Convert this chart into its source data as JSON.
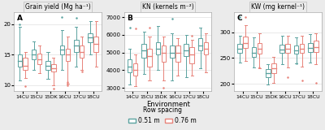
{
  "panels": [
    {
      "label": "A",
      "title": "Grain yield (Mg ha⁻¹)",
      "ylim": [
        9,
        22
      ],
      "yticks": [
        10,
        15,
        20
      ],
      "environments": [
        "14CU",
        "15CU",
        "15DK",
        "16CU",
        "17CU",
        "18CU"
      ],
      "series": {
        "0.51m": {
          "color": "#5ba3a0",
          "boxes": [
            {
              "q1": 13.0,
              "median": 14.0,
              "q3": 15.0,
              "whislo": 10.8,
              "whishi": 19.5,
              "fliers": [
                19.9
              ]
            },
            {
              "q1": 14.2,
              "median": 15.0,
              "q3": 15.8,
              "whislo": 12.5,
              "whishi": 17.2,
              "fliers": []
            },
            {
              "q1": 12.5,
              "median": 13.2,
              "q3": 14.0,
              "whislo": 11.0,
              "whishi": 15.5,
              "fliers": []
            },
            {
              "q1": 15.0,
              "median": 15.8,
              "q3": 16.5,
              "whislo": 12.5,
              "whishi": 19.0,
              "fliers": [
                21.2
              ]
            },
            {
              "q1": 15.5,
              "median": 16.5,
              "q3": 17.5,
              "whislo": 13.0,
              "whishi": 19.5,
              "fliers": [
                21.0
              ]
            },
            {
              "q1": 17.0,
              "median": 17.8,
              "q3": 18.5,
              "whislo": 15.0,
              "whishi": 20.5,
              "fliers": []
            }
          ]
        },
        "0.76m": {
          "color": "#e8837a",
          "boxes": [
            {
              "q1": 12.5,
              "median": 13.2,
              "q3": 14.5,
              "whislo": 11.2,
              "whishi": 15.5,
              "fliers": [
                9.8
              ]
            },
            {
              "q1": 13.5,
              "median": 14.2,
              "q3": 15.2,
              "whislo": 12.0,
              "whishi": 16.5,
              "fliers": []
            },
            {
              "q1": 12.2,
              "median": 12.8,
              "q3": 13.5,
              "whislo": 10.0,
              "whishi": 14.5,
              "fliers": [
                9.5
              ]
            },
            {
              "q1": 14.0,
              "median": 15.0,
              "q3": 16.0,
              "whislo": 10.2,
              "whishi": 18.0,
              "fliers": [
                10.0,
                10.2,
                10.5
              ]
            },
            {
              "q1": 14.5,
              "median": 15.5,
              "q3": 16.5,
              "whislo": 12.5,
              "whishi": 18.0,
              "fliers": [
                12.2
              ]
            },
            {
              "q1": 15.5,
              "median": 16.8,
              "q3": 18.0,
              "whislo": 13.0,
              "whishi": 20.5,
              "fliers": []
            }
          ]
        }
      }
    },
    {
      "label": "B",
      "title": "KN (kernels m⁻²)",
      "ylim": [
        2800,
        7300
      ],
      "yticks": [
        3000,
        4000,
        5000,
        6000,
        7000
      ],
      "environments": [
        "14CU",
        "15CU",
        "15DK",
        "16CU",
        "17CU",
        "18CU"
      ],
      "series": {
        "0.51m": {
          "color": "#5ba3a0",
          "boxes": [
            {
              "q1": 3900,
              "median": 4200,
              "q3": 4600,
              "whislo": 3200,
              "whishi": 5200,
              "fliers": [
                6400
              ]
            },
            {
              "q1": 4700,
              "median": 5100,
              "q3": 5500,
              "whislo": 3800,
              "whishi": 6200,
              "fliers": []
            },
            {
              "q1": 4900,
              "median": 5200,
              "q3": 5600,
              "whislo": 4000,
              "whishi": 6500,
              "fliers": []
            },
            {
              "q1": 4700,
              "median": 5000,
              "q3": 5400,
              "whislo": 3400,
              "whishi": 6100,
              "fliers": [
                6900
              ]
            },
            {
              "q1": 4800,
              "median": 5100,
              "q3": 5500,
              "whislo": 3600,
              "whishi": 6000,
              "fliers": []
            },
            {
              "q1": 5100,
              "median": 5400,
              "q3": 5800,
              "whislo": 4100,
              "whishi": 6400,
              "fliers": []
            }
          ]
        },
        "0.76m": {
          "color": "#e8837a",
          "boxes": [
            {
              "q1": 3700,
              "median": 4000,
              "q3": 4400,
              "whislo": 3100,
              "whishi": 4900,
              "fliers": [
                6350
              ]
            },
            {
              "q1": 4200,
              "median": 4800,
              "q3": 5200,
              "whislo": 3400,
              "whishi": 5900,
              "fliers": [
                6400
              ]
            },
            {
              "q1": 4500,
              "median": 5000,
              "q3": 5400,
              "whislo": 3400,
              "whishi": 5900,
              "fliers": [
                3000
              ]
            },
            {
              "q1": 4500,
              "median": 5000,
              "q3": 5400,
              "whislo": 3700,
              "whishi": 5800,
              "fliers": []
            },
            {
              "q1": 4400,
              "median": 4900,
              "q3": 5300,
              "whislo": 3700,
              "whishi": 5700,
              "fliers": [
                5950
              ]
            },
            {
              "q1": 4900,
              "median": 5200,
              "q3": 5600,
              "whislo": 3900,
              "whishi": 6100,
              "fliers": []
            }
          ]
        }
      }
    },
    {
      "label": "C",
      "title": "KW (mg kernel⁻¹)",
      "ylim": [
        185,
        340
      ],
      "yticks": [
        200,
        250,
        300
      ],
      "environments": [
        "14CU",
        "15CU",
        "15DK",
        "16CU",
        "17CU",
        "18CU"
      ],
      "series": {
        "0.51m": {
          "color": "#5ba3a0",
          "boxes": [
            {
              "q1": 260,
              "median": 268,
              "q3": 278,
              "whislo": 242,
              "whishi": 294,
              "fliers": [
                330
              ]
            },
            {
              "q1": 252,
              "median": 260,
              "q3": 272,
              "whislo": 232,
              "whishi": 290,
              "fliers": []
            },
            {
              "q1": 212,
              "median": 220,
              "q3": 228,
              "whislo": 198,
              "whishi": 238,
              "fliers": []
            },
            {
              "q1": 260,
              "median": 267,
              "q3": 276,
              "whislo": 238,
              "whishi": 294,
              "fliers": []
            },
            {
              "q1": 258,
              "median": 265,
              "q3": 274,
              "whislo": 240,
              "whishi": 290,
              "fliers": [
                240
              ]
            },
            {
              "q1": 262,
              "median": 270,
              "q3": 280,
              "whislo": 242,
              "whishi": 296,
              "fliers": []
            }
          ]
        },
        "0.76m": {
          "color": "#e8837a",
          "boxes": [
            {
              "q1": 270,
              "median": 280,
              "q3": 292,
              "whislo": 244,
              "whishi": 314,
              "fliers": [
                330
              ]
            },
            {
              "q1": 258,
              "median": 268,
              "q3": 280,
              "whislo": 230,
              "whishi": 298,
              "fliers": [
                232
              ]
            },
            {
              "q1": 220,
              "median": 230,
              "q3": 240,
              "whislo": 202,
              "whishi": 252,
              "fliers": []
            },
            {
              "q1": 260,
              "median": 268,
              "q3": 278,
              "whislo": 232,
              "whishi": 294,
              "fliers": [
                212
              ]
            },
            {
              "q1": 260,
              "median": 268,
              "q3": 278,
              "whislo": 234,
              "whishi": 294,
              "fliers": [
                206
              ]
            },
            {
              "q1": 262,
              "median": 272,
              "q3": 284,
              "whislo": 238,
              "whishi": 298,
              "fliers": [
                202
              ]
            }
          ]
        }
      }
    }
  ],
  "xlabel": "Environment",
  "legend_labels": [
    "0.51 m",
    "0.76 m"
  ],
  "legend_colors": [
    "#5ba3a0",
    "#e8837a"
  ],
  "bg_color": "#ebebeb",
  "panel_bg": "#ffffff",
  "box_width": 0.32,
  "flier_size": 1.8,
  "linewidth": 0.7
}
